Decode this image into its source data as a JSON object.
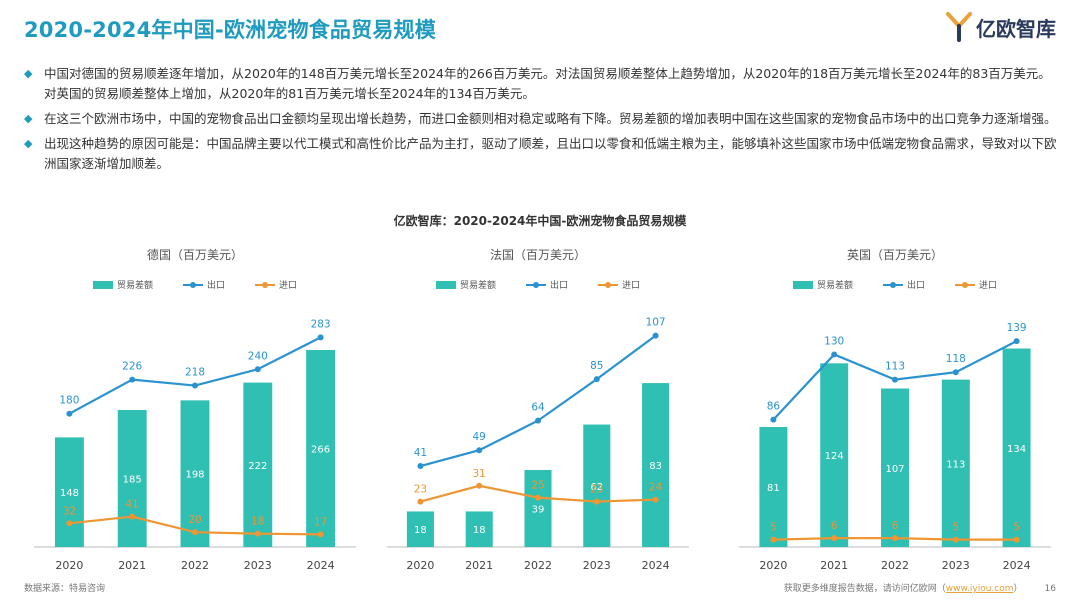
{
  "page_title": "2020-2024年中国-欧洲宠物食品贸易规模",
  "logo_text": "亿欧智库",
  "bullets": [
    "中国对德国的贸易顺差逐年增加，从2020年的148百万美元增长至2024年的266百万美元。对法国贸易顺差整体上趋势增加，从2020年的18百万美元增长至2024年的83百万美元。对英国的贸易顺差整体上增加，从2020年的81百万美元增长至2024年的134百万美元。",
    "在这三个欧洲市场中，中国的宠物食品出口金额均呈现出增长趋势，而进口金额则相对稳定或略有下降。贸易差额的增加表明中国在这些国家的宠物食品市场中的出口竞争力逐渐增强。",
    "出现这种趋势的原因可能是：中国品牌主要以代工模式和高性价比产品为主打，驱动了顺差，且出口以零食和低端主粮为主，能够填补这些国家市场中低端宠物食品需求，导致对以下欧洲国家逐渐增加顺差。"
  ],
  "chart_title": "亿欧智库：2020-2024年中国-欧洲宠物食品贸易规模",
  "legend": {
    "bar": "贸易差额",
    "export": "出口",
    "import": "进口"
  },
  "colors": {
    "bar": "#2fbfb3",
    "export": "#2a93cf",
    "import": "#ee9633",
    "title": "#1f9bbf"
  },
  "chart_data": [
    {
      "type": "bar",
      "title": "德国（百万美元）",
      "categories": [
        "2020",
        "2021",
        "2022",
        "2023",
        "2024"
      ],
      "series": [
        {
          "name": "贸易差额",
          "type": "bar",
          "values": [
            148,
            185,
            198,
            222,
            266
          ]
        },
        {
          "name": "出口",
          "type": "line",
          "values": [
            180,
            226,
            218,
            240,
            283
          ]
        },
        {
          "name": "进口",
          "type": "line",
          "values": [
            32,
            41,
            20,
            18,
            17
          ]
        }
      ],
      "ylim": [
        0,
        320
      ]
    },
    {
      "type": "bar",
      "title": "法国（百万美元）",
      "categories": [
        "2020",
        "2021",
        "2022",
        "2023",
        "2024"
      ],
      "series": [
        {
          "name": "贸易差额",
          "type": "bar",
          "values": [
            18,
            18,
            39,
            62,
            83
          ]
        },
        {
          "name": "出口",
          "type": "line",
          "values": [
            41,
            49,
            64,
            85,
            107
          ]
        },
        {
          "name": "进口",
          "type": "line",
          "values": [
            23,
            31,
            25,
            23,
            24
          ]
        }
      ],
      "ylim": [
        0,
        120
      ]
    },
    {
      "type": "bar",
      "title": "英国（百万美元）",
      "categories": [
        "2020",
        "2021",
        "2022",
        "2023",
        "2024"
      ],
      "series": [
        {
          "name": "贸易差额",
          "type": "bar",
          "values": [
            81,
            124,
            107,
            113,
            134
          ]
        },
        {
          "name": "出口",
          "type": "line",
          "values": [
            86,
            130,
            113,
            118,
            139
          ]
        },
        {
          "name": "进口",
          "type": "line",
          "values": [
            5,
            6,
            6,
            5,
            5
          ]
        }
      ],
      "ylim": [
        0,
        160
      ]
    }
  ],
  "footer": {
    "source": "数据来源：特易咨询",
    "more_prefix": "获取更多维度报告数据，请访问亿欧网（",
    "more_link": "www.iyiou.com",
    "more_suffix": "）",
    "page_number": "16"
  }
}
